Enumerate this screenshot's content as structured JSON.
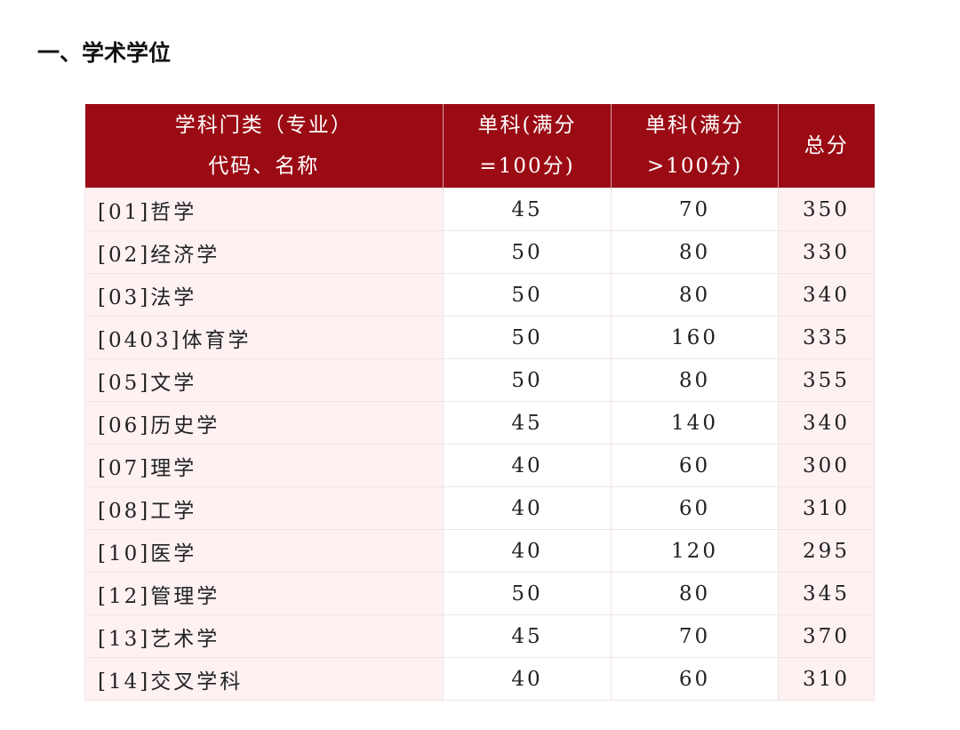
{
  "title": "一、学术学位",
  "colors": {
    "header_bg": "#9b0b14",
    "accent_cell_bg": "#fdf1f2"
  },
  "table": {
    "headers": [
      [
        "学科门类（专业）",
        "代码、名称"
      ],
      [
        "单科(满分",
        "=100分)"
      ],
      [
        "单科(满分",
        ">100分)"
      ],
      [
        "总分"
      ]
    ],
    "rows": [
      [
        "[01]哲学",
        "45",
        "70",
        "350"
      ],
      [
        "[02]经济学",
        "50",
        "80",
        "330"
      ],
      [
        "[03]法学",
        "50",
        "80",
        "340"
      ],
      [
        "[0403]体育学",
        "50",
        "160",
        "335"
      ],
      [
        "[05]文学",
        "50",
        "80",
        "355"
      ],
      [
        "[06]历史学",
        "45",
        "140",
        "340"
      ],
      [
        "[07]理学",
        "40",
        "60",
        "300"
      ],
      [
        "[08]工学",
        "40",
        "60",
        "310"
      ],
      [
        "[10]医学",
        "40",
        "120",
        "295"
      ],
      [
        "[12]管理学",
        "50",
        "80",
        "345"
      ],
      [
        "[13]艺术学",
        "45",
        "70",
        "370"
      ],
      [
        "[14]交叉学科",
        "40",
        "60",
        "310"
      ]
    ]
  }
}
